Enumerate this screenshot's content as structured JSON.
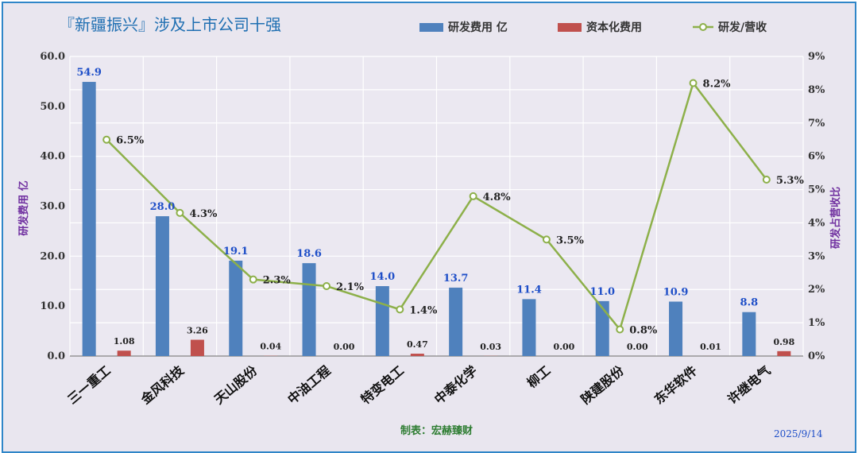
{
  "title": "『新疆振兴』涉及上市公司十强",
  "footer": "制表：宏赫臻财",
  "date": "2025/9/14",
  "colors": {
    "rd": "#4f81bd",
    "cap": "#c0504d",
    "ratio": "#8db04a"
  },
  "chart_data": {
    "type": "bar",
    "categories": [
      "三一重工",
      "金风科技",
      "天山股份",
      "中油工程",
      "特变电工",
      "中泰化学",
      "柳工",
      "陕建股份",
      "东华软件",
      "许继电气"
    ],
    "series": [
      {
        "name": "研发费用 亿",
        "type": "bar",
        "axis": "left",
        "values": [
          54.9,
          28.0,
          19.1,
          18.6,
          14.0,
          13.7,
          11.4,
          11.0,
          10.9,
          8.8
        ],
        "labels": [
          "54.9",
          "28.0",
          "19.1",
          "18.6",
          "14.0",
          "13.7",
          "11.4",
          "11.0",
          "10.9",
          "8.8"
        ]
      },
      {
        "name": "资本化费用",
        "type": "bar",
        "axis": "left",
        "values": [
          1.08,
          3.26,
          0.04,
          0.0,
          0.47,
          0.03,
          0.0,
          0.0,
          0.01,
          0.98
        ],
        "labels": [
          "1.08",
          "3.26",
          "0.04",
          "0.00",
          "0.47",
          "0.03",
          "0.00",
          "0.00",
          "0.01",
          "0.98"
        ]
      },
      {
        "name": "研发/营收",
        "type": "line",
        "axis": "right",
        "values": [
          6.5,
          4.3,
          2.3,
          2.1,
          1.4,
          4.8,
          3.5,
          0.8,
          8.2,
          5.3
        ],
        "labels": [
          "6.5%",
          "4.3%",
          "2.3%",
          "2.1%",
          "1.4%",
          "4.8%",
          "3.5%",
          "0.8%",
          "8.2%",
          "5.3%"
        ]
      }
    ],
    "ylabel": "研发费用 亿",
    "y2label": "研发占营收比",
    "ylim": [
      0,
      60
    ],
    "y2lim": [
      0,
      9
    ],
    "yticks": [
      "0.0",
      "10.0",
      "20.0",
      "30.0",
      "40.0",
      "50.0",
      "60.0"
    ],
    "y2ticks": [
      "0%",
      "1%",
      "2%",
      "3%",
      "4%",
      "5%",
      "6%",
      "7%",
      "8%",
      "9%"
    ],
    "grid": true,
    "legend": "top"
  }
}
